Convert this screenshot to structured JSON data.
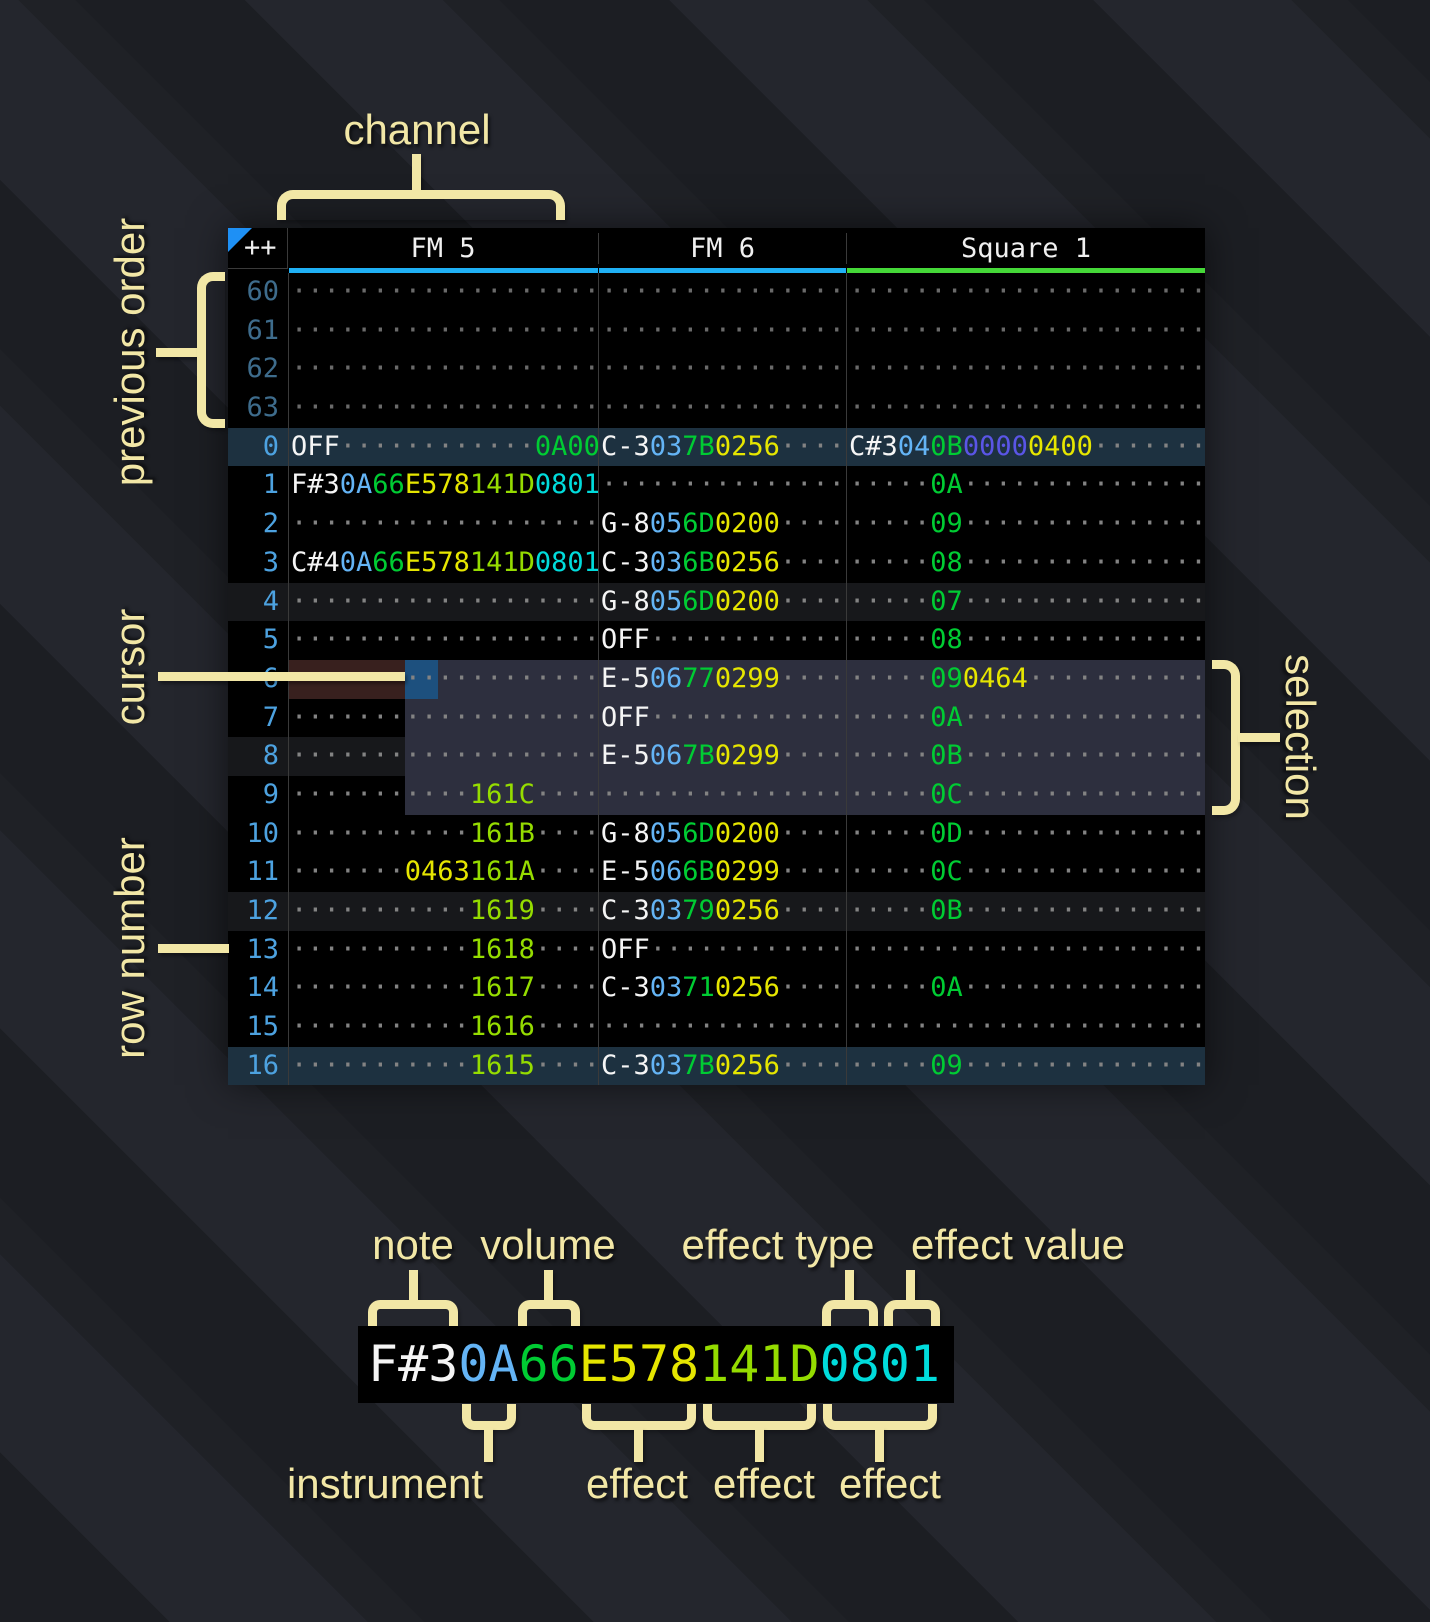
{
  "annotations": {
    "channel": "channel",
    "previous_order": "previous order",
    "cursor": "cursor",
    "row_number": "row number",
    "selection": "selection",
    "note": "note",
    "volume": "volume",
    "effect_type": "effect type",
    "effect_value": "effect value",
    "instrument": "instrument",
    "effect_a": "effect",
    "effect_b": "effect",
    "effect_c": "effect"
  },
  "header": {
    "corner": "++",
    "channels": [
      "FM 5",
      "FM 6",
      "Square 1"
    ],
    "channel_colors": [
      "#1fb0f5",
      "#1fb0f5",
      "#45d838"
    ]
  },
  "colors": {
    "annotation": "#f2e7a6",
    "cursor_cell": "#1d507e",
    "selection_bg": "#2d2f3e",
    "cursor_row_bg": "#38201e",
    "row_highlight_16": "#1d3140",
    "row_highlight_4": "#17181b",
    "note": "#f5f5f5",
    "instrument": "#64b4f5",
    "volume": "#00cc33",
    "effect_yellow": "#e6e600",
    "effect_lime": "#95dc00",
    "effect_cyan": "#00dcdc",
    "effect_indigo": "#5a55e6",
    "row_number": "#4da2e0",
    "row_number_dim": "#3e6c8c"
  },
  "pattern": {
    "rows": [
      {
        "n": "60",
        "dim": true,
        "hl": "",
        "fm5": [
          [
            "···················",
            "dot"
          ]
        ],
        "fm6": [
          [
            "···············",
            "dot"
          ]
        ],
        "sq1": [
          [
            "······················",
            "dot"
          ]
        ]
      },
      {
        "n": "61",
        "dim": true,
        "hl": "",
        "fm5": [
          [
            "···················",
            "dot"
          ]
        ],
        "fm6": [
          [
            "···············",
            "dot"
          ]
        ],
        "sq1": [
          [
            "······················",
            "dot"
          ]
        ]
      },
      {
        "n": "62",
        "dim": true,
        "hl": "",
        "fm5": [
          [
            "···················",
            "dot"
          ]
        ],
        "fm6": [
          [
            "···············",
            "dot"
          ]
        ],
        "sq1": [
          [
            "······················",
            "dot"
          ]
        ]
      },
      {
        "n": "63",
        "dim": true,
        "hl": "",
        "fm5": [
          [
            "···················",
            "dot"
          ]
        ],
        "fm6": [
          [
            "···············",
            "dot"
          ]
        ],
        "sq1": [
          [
            "······················",
            "dot"
          ]
        ]
      },
      {
        "n": "0",
        "dim": false,
        "hl": "16",
        "fm5": [
          [
            "OFF",
            "note"
          ],
          [
            "············",
            "dot"
          ],
          [
            "0A00",
            "fxG"
          ]
        ],
        "fm6": [
          [
            "C-3",
            "note"
          ],
          [
            "03",
            "ins"
          ],
          [
            "7B",
            "vol"
          ],
          [
            "0256",
            "fxY"
          ],
          [
            "····",
            "dot"
          ]
        ],
        "sq1": [
          [
            "C#3",
            "note"
          ],
          [
            "04",
            "ins"
          ],
          [
            "0B",
            "vol"
          ],
          [
            "0000",
            "fxI"
          ],
          [
            "0400",
            "fxY"
          ],
          [
            "·······",
            "dot"
          ]
        ]
      },
      {
        "n": "1",
        "dim": false,
        "hl": "",
        "fm5": [
          [
            "F#3",
            "note"
          ],
          [
            "0A",
            "ins"
          ],
          [
            "66",
            "vol"
          ],
          [
            "E578",
            "fxY"
          ],
          [
            "141D",
            "fxL"
          ],
          [
            "0801",
            "fxC"
          ]
        ],
        "fm6": [
          [
            "···············",
            "dot"
          ]
        ],
        "sq1": [
          [
            "·····",
            "dot"
          ],
          [
            "0A",
            "vol"
          ],
          [
            "···············",
            "dot"
          ]
        ]
      },
      {
        "n": "2",
        "dim": false,
        "hl": "",
        "fm5": [
          [
            "···················",
            "dot"
          ]
        ],
        "fm6": [
          [
            "G-8",
            "note"
          ],
          [
            "05",
            "ins"
          ],
          [
            "6D",
            "vol"
          ],
          [
            "0200",
            "fxY"
          ],
          [
            "····",
            "dot"
          ]
        ],
        "sq1": [
          [
            "·····",
            "dot"
          ],
          [
            "09",
            "vol"
          ],
          [
            "···············",
            "dot"
          ]
        ]
      },
      {
        "n": "3",
        "dim": false,
        "hl": "",
        "fm5": [
          [
            "C#4",
            "note"
          ],
          [
            "0A",
            "ins"
          ],
          [
            "66",
            "vol"
          ],
          [
            "E578",
            "fxY"
          ],
          [
            "141D",
            "fxL"
          ],
          [
            "0801",
            "fxC"
          ]
        ],
        "fm6": [
          [
            "C-3",
            "note"
          ],
          [
            "03",
            "ins"
          ],
          [
            "6B",
            "vol"
          ],
          [
            "0256",
            "fxY"
          ],
          [
            "····",
            "dot"
          ]
        ],
        "sq1": [
          [
            "·····",
            "dot"
          ],
          [
            "08",
            "vol"
          ],
          [
            "···············",
            "dot"
          ]
        ]
      },
      {
        "n": "4",
        "dim": false,
        "hl": "4",
        "fm5": [
          [
            "···················",
            "dot"
          ]
        ],
        "fm6": [
          [
            "G-8",
            "note"
          ],
          [
            "05",
            "ins"
          ],
          [
            "6D",
            "vol"
          ],
          [
            "0200",
            "fxY"
          ],
          [
            "····",
            "dot"
          ]
        ],
        "sq1": [
          [
            "·····",
            "dot"
          ],
          [
            "07",
            "vol"
          ],
          [
            "···············",
            "dot"
          ]
        ]
      },
      {
        "n": "5",
        "dim": false,
        "hl": "",
        "fm5": [
          [
            "···················",
            "dot"
          ]
        ],
        "fm6": [
          [
            "OFF",
            "note"
          ],
          [
            "············",
            "dot"
          ]
        ],
        "sq1": [
          [
            "·····",
            "dot"
          ],
          [
            "08",
            "vol"
          ],
          [
            "···············",
            "dot"
          ]
        ]
      },
      {
        "n": "6",
        "dim": false,
        "hl": "",
        "fm5": [
          [
            "···················",
            "dot"
          ]
        ],
        "fm6": [
          [
            "E-5",
            "note"
          ],
          [
            "06",
            "ins"
          ],
          [
            "77",
            "vol"
          ],
          [
            "0299",
            "fxY"
          ],
          [
            "····",
            "dot"
          ]
        ],
        "sq1": [
          [
            "·····",
            "dot"
          ],
          [
            "09",
            "vol"
          ],
          [
            "0464",
            "fxY"
          ],
          [
            "···········",
            "dot"
          ]
        ]
      },
      {
        "n": "7",
        "dim": false,
        "hl": "",
        "fm5": [
          [
            "···················",
            "dot"
          ]
        ],
        "fm6": [
          [
            "OFF",
            "note"
          ],
          [
            "············",
            "dot"
          ]
        ],
        "sq1": [
          [
            "·····",
            "dot"
          ],
          [
            "0A",
            "vol"
          ],
          [
            "···············",
            "dot"
          ]
        ]
      },
      {
        "n": "8",
        "dim": false,
        "hl": "4",
        "fm5": [
          [
            "···················",
            "dot"
          ]
        ],
        "fm6": [
          [
            "E-5",
            "note"
          ],
          [
            "06",
            "ins"
          ],
          [
            "7B",
            "vol"
          ],
          [
            "0299",
            "fxY"
          ],
          [
            "····",
            "dot"
          ]
        ],
        "sq1": [
          [
            "·····",
            "dot"
          ],
          [
            "0B",
            "vol"
          ],
          [
            "···············",
            "dot"
          ]
        ]
      },
      {
        "n": "9",
        "dim": false,
        "hl": "",
        "fm5": [
          [
            "···········",
            "dot"
          ],
          [
            "161C",
            "fxL"
          ],
          [
            "····",
            "dot"
          ]
        ],
        "fm6": [
          [
            "···············",
            "dot"
          ]
        ],
        "sq1": [
          [
            "·····",
            "dot"
          ],
          [
            "0C",
            "vol"
          ],
          [
            "···············",
            "dot"
          ]
        ]
      },
      {
        "n": "10",
        "dim": false,
        "hl": "",
        "fm5": [
          [
            "···········",
            "dot"
          ],
          [
            "161B",
            "fxL"
          ],
          [
            "····",
            "dot"
          ]
        ],
        "fm6": [
          [
            "G-8",
            "note"
          ],
          [
            "05",
            "ins"
          ],
          [
            "6D",
            "vol"
          ],
          [
            "0200",
            "fxY"
          ],
          [
            "····",
            "dot"
          ]
        ],
        "sq1": [
          [
            "·····",
            "dot"
          ],
          [
            "0D",
            "vol"
          ],
          [
            "···············",
            "dot"
          ]
        ]
      },
      {
        "n": "11",
        "dim": false,
        "hl": "",
        "fm5": [
          [
            "·······",
            "dot"
          ],
          [
            "0463",
            "fxY"
          ],
          [
            "161A",
            "fxL"
          ],
          [
            "····",
            "dot"
          ]
        ],
        "fm6": [
          [
            "E-5",
            "note"
          ],
          [
            "06",
            "ins"
          ],
          [
            "6B",
            "vol"
          ],
          [
            "0299",
            "fxY"
          ],
          [
            "····",
            "dot"
          ]
        ],
        "sq1": [
          [
            "·····",
            "dot"
          ],
          [
            "0C",
            "vol"
          ],
          [
            "···············",
            "dot"
          ]
        ]
      },
      {
        "n": "12",
        "dim": false,
        "hl": "4",
        "fm5": [
          [
            "···········",
            "dot"
          ],
          [
            "1619",
            "fxL"
          ],
          [
            "····",
            "dot"
          ]
        ],
        "fm6": [
          [
            "C-3",
            "note"
          ],
          [
            "03",
            "ins"
          ],
          [
            "79",
            "vol"
          ],
          [
            "0256",
            "fxY"
          ],
          [
            "····",
            "dot"
          ]
        ],
        "sq1": [
          [
            "·····",
            "dot"
          ],
          [
            "0B",
            "vol"
          ],
          [
            "···············",
            "dot"
          ]
        ]
      },
      {
        "n": "13",
        "dim": false,
        "hl": "",
        "fm5": [
          [
            "···········",
            "dot"
          ],
          [
            "1618",
            "fxL"
          ],
          [
            "····",
            "dot"
          ]
        ],
        "fm6": [
          [
            "OFF",
            "note"
          ],
          [
            "············",
            "dot"
          ]
        ],
        "sq1": [
          [
            "······················",
            "dot"
          ]
        ]
      },
      {
        "n": "14",
        "dim": false,
        "hl": "",
        "fm5": [
          [
            "···········",
            "dot"
          ],
          [
            "1617",
            "fxL"
          ],
          [
            "····",
            "dot"
          ]
        ],
        "fm6": [
          [
            "C-3",
            "note"
          ],
          [
            "03",
            "ins"
          ],
          [
            "71",
            "vol"
          ],
          [
            "0256",
            "fxY"
          ],
          [
            "····",
            "dot"
          ]
        ],
        "sq1": [
          [
            "·····",
            "dot"
          ],
          [
            "0A",
            "vol"
          ],
          [
            "···············",
            "dot"
          ]
        ]
      },
      {
        "n": "15",
        "dim": false,
        "hl": "",
        "fm5": [
          [
            "···········",
            "dot"
          ],
          [
            "1616",
            "fxL"
          ],
          [
            "····",
            "dot"
          ]
        ],
        "fm6": [
          [
            "···············",
            "dot"
          ]
        ],
        "sq1": [
          [
            "······················",
            "dot"
          ]
        ]
      },
      {
        "n": "16",
        "dim": false,
        "hl": "16",
        "fm5": [
          [
            "···········",
            "dot"
          ],
          [
            "1615",
            "fxL"
          ],
          [
            "····",
            "dot"
          ]
        ],
        "fm6": [
          [
            "C-3",
            "note"
          ],
          [
            "03",
            "ins"
          ],
          [
            "7B",
            "vol"
          ],
          [
            "0256",
            "fxY"
          ],
          [
            "····",
            "dot"
          ]
        ],
        "sq1": [
          [
            "·····",
            "dot"
          ],
          [
            "09",
            "vol"
          ],
          [
            "···············",
            "dot"
          ]
        ]
      }
    ]
  },
  "zoom_cell": {
    "segments": [
      [
        "F#3",
        "note"
      ],
      [
        "0A",
        "ins"
      ],
      [
        "66",
        "vol"
      ],
      [
        "E578",
        "fxY"
      ],
      [
        "141D",
        "fxL"
      ],
      [
        "0801",
        "fxC"
      ]
    ]
  }
}
